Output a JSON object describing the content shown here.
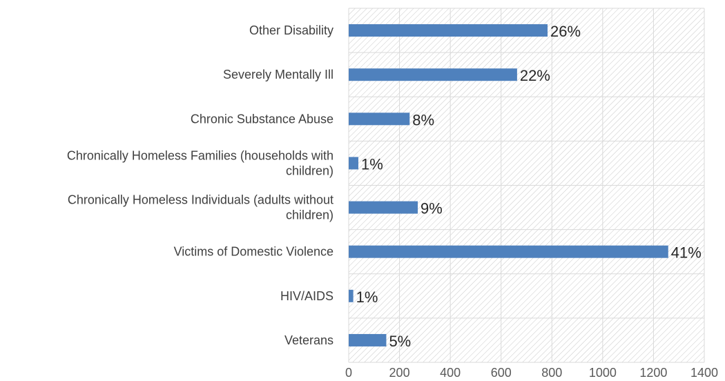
{
  "chart_data": {
    "type": "bar",
    "orientation": "horizontal",
    "categories": [
      [
        "Other Disability"
      ],
      [
        "Severely Mentally Ill"
      ],
      [
        "Chronic Substance Abuse"
      ],
      [
        "Chronically Homeless Families (households with",
        "children)"
      ],
      [
        "Chronically Homeless Individuals (adults without",
        "children)"
      ],
      [
        "Victims of Domestic Violence"
      ],
      [
        "HIV/AIDS"
      ],
      [
        "Veterans"
      ]
    ],
    "values": [
      783,
      663,
      240,
      38,
      272,
      1258,
      18,
      148
    ],
    "data_labels": [
      "26%",
      "22%",
      "8%",
      "1%",
      "9%",
      "41%",
      "1%",
      "5%"
    ],
    "xticks": [
      "0",
      "200",
      "400",
      "600",
      "800",
      "1000",
      "1200",
      "1400"
    ],
    "xlim": [
      0,
      1400
    ],
    "grid": true,
    "legend": "none",
    "colors": {
      "bar": "#4f81bd",
      "grid": "#d9d9d9",
      "hatch": "#c8c8c8"
    }
  }
}
